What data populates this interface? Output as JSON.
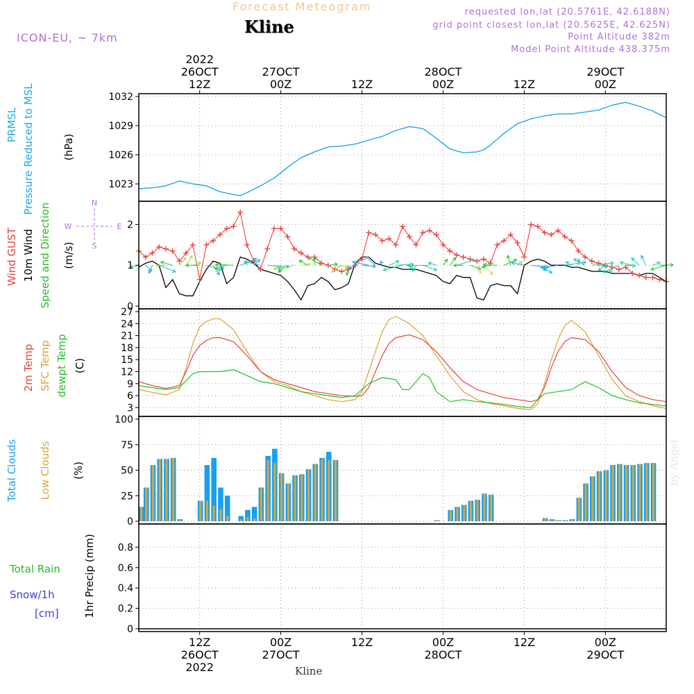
{
  "header": {
    "main_title": "Forecast Meteogram",
    "station": "Kline",
    "model": "ICON-EU, ~ 7km",
    "requested": "requested lon,lat (20.5761E, 42.6188N)",
    "grid_point": "grid point closest lon,lat (20.5625E, 42.625N)",
    "point_altitude": "Point Altitude 382m",
    "model_altitude": "Model Point Altitude 438.375m",
    "watermark": "by Angel",
    "bottom_station": "Kline"
  },
  "time_axis": {
    "hours_total": 78,
    "top_labels": [
      {
        "h": 0,
        "lines": [
          "2022",
          "26OCT",
          "12Z"
        ]
      },
      {
        "h": 12,
        "lines": [
          "27OCT",
          "00Z"
        ]
      },
      {
        "h": 24,
        "lines": [
          "12Z"
        ]
      },
      {
        "h": 36,
        "lines": [
          "28OCT",
          "00Z"
        ]
      },
      {
        "h": 48,
        "lines": [
          "12Z"
        ]
      },
      {
        "h": 60,
        "lines": [
          "29OCT",
          "00Z"
        ]
      }
    ],
    "bottom_labels": [
      {
        "h": 0,
        "lines": [
          "12Z",
          "26OCT",
          "2022"
        ]
      },
      {
        "h": 12,
        "lines": [
          "00Z",
          "27OCT"
        ]
      },
      {
        "h": 24,
        "lines": [
          "12Z"
        ]
      },
      {
        "h": 36,
        "lines": [
          "00Z",
          "28OCT"
        ]
      },
      {
        "h": 48,
        "lines": [
          "12Z"
        ]
      },
      {
        "h": 60,
        "lines": [
          "00Z",
          "29OCT"
        ]
      }
    ]
  },
  "panels": {
    "pressure": {
      "labels": [
        "PRMSL",
        "Pressure Reduced to MSL"
      ],
      "unit": "(hPa)",
      "ticks": [
        "1023",
        "1026",
        "1029",
        "1032"
      ]
    },
    "wind": {
      "labels": [
        "Wind GUST",
        "10m Wind",
        "Speed and Direction"
      ],
      "unit": "(m/s)",
      "ticks": [
        "0",
        "1",
        "2"
      ],
      "compass": {
        "n": "N",
        "w": "W",
        "e": "E",
        "s": "S"
      }
    },
    "temp": {
      "labels": [
        "2m Temp",
        "SFC Temp",
        "dewpt Temp"
      ],
      "unit": "(C)",
      "ticks": [
        "3",
        "6",
        "9",
        "12",
        "15",
        "18",
        "21",
        "24",
        "27"
      ]
    },
    "clouds": {
      "labels": [
        "Total Clouds",
        "Low Clouds"
      ],
      "unit": "(%)",
      "ticks": [
        "0",
        "25",
        "50",
        "75",
        "100"
      ]
    },
    "precip": {
      "labels": [
        "Total  Rain",
        "Snow/1h",
        "[cm]"
      ],
      "unit": "1hr Precip (mm)",
      "ticks": [
        "0",
        "0.2",
        "0.4",
        "0.6",
        "0.8"
      ]
    }
  },
  "colors": {
    "pressure": "#1ea8e8",
    "gust": "#e8403c",
    "wind": "#000000",
    "temp2m": "#e8403c",
    "sfc": "#e0a030",
    "dewpt": "#22c022",
    "total_clouds": "#1a9ff0",
    "low_clouds": "#d8a838",
    "purple": "#b26fdc",
    "title": "#f0c890"
  },
  "chart_data": [
    {
      "type": "line",
      "name": "PRMSL",
      "ylim": [
        1021.5,
        1032
      ],
      "x": [
        -9,
        -7,
        -5,
        -3,
        -1,
        1,
        3,
        5,
        6,
        7,
        9,
        11,
        13,
        15,
        17,
        19,
        21,
        23,
        24,
        25,
        27,
        29,
        31,
        33,
        35,
        37,
        38,
        39,
        41,
        42,
        43,
        45,
        47,
        49,
        51,
        53,
        55,
        57,
        59,
        61,
        63,
        65,
        67,
        69
      ],
      "values": [
        1022.5,
        1022.6,
        1022.8,
        1023.3,
        1023.0,
        1022.8,
        1022.2,
        1021.9,
        1021.8,
        1022.1,
        1022.8,
        1023.6,
        1024.7,
        1025.7,
        1026.3,
        1026.8,
        1026.9,
        1027.1,
        1027.3,
        1027.5,
        1027.9,
        1028.5,
        1028.9,
        1028.7,
        1027.7,
        1026.6,
        1026.4,
        1026.2,
        1026.3,
        1026.5,
        1027.0,
        1028.2,
        1029.2,
        1029.7,
        1030.0,
        1030.2,
        1030.2,
        1030.4,
        1030.6,
        1031.1,
        1031.4,
        1031.0,
        1030.5,
        1029.8
      ]
    },
    {
      "type": "line",
      "name": "Wind GUST",
      "ylim": [
        0,
        2.5
      ],
      "x": [
        -9,
        -8,
        -7,
        -6,
        -5,
        -4,
        -3,
        -2,
        -1,
        0,
        1,
        2,
        3,
        4,
        5,
        6,
        7,
        8,
        9,
        10,
        11,
        12,
        13,
        14,
        15,
        16,
        17,
        18,
        19,
        20,
        21,
        22,
        23,
        24,
        25,
        26,
        27,
        28,
        29,
        30,
        31,
        32,
        33,
        34,
        35,
        36,
        37,
        38,
        39,
        40,
        41,
        42,
        43,
        44,
        45,
        46,
        47,
        48,
        49,
        50,
        51,
        52,
        53,
        54,
        55,
        56,
        57,
        58,
        59,
        60,
        61,
        62,
        63,
        64,
        65,
        66,
        67,
        68,
        69
      ],
      "values": [
        1.35,
        1.2,
        1.3,
        1.45,
        1.4,
        1.35,
        1.1,
        1.3,
        1.5,
        0.65,
        1.5,
        1.6,
        1.75,
        1.9,
        1.95,
        2.3,
        1.5,
        1.1,
        0.9,
        1.4,
        1.9,
        1.9,
        1.7,
        1.4,
        1.3,
        1.2,
        1.2,
        1.05,
        1.0,
        0.9,
        0.85,
        0.9,
        1.0,
        1.15,
        1.8,
        1.75,
        1.6,
        1.65,
        1.5,
        1.95,
        1.7,
        1.5,
        1.8,
        1.85,
        1.75,
        1.5,
        1.35,
        1.25,
        1.2,
        1.15,
        1.1,
        1.15,
        1.05,
        1.5,
        1.6,
        1.75,
        1.55,
        1.2,
        2.0,
        1.95,
        1.8,
        1.75,
        1.85,
        1.7,
        1.6,
        1.35,
        1.2,
        1.1,
        1.05,
        1.0,
        0.95,
        0.9,
        0.95,
        0.8,
        0.75,
        0.7,
        0.7,
        0.65,
        0.6
      ]
    },
    {
      "type": "line",
      "name": "10m Wind",
      "ylim": [
        0,
        2.5
      ],
      "x": [
        -9,
        -8,
        -7,
        -6,
        -5,
        -4,
        -3,
        -2,
        -1,
        0,
        1,
        2,
        3,
        4,
        5,
        6,
        7,
        8,
        9,
        10,
        11,
        12,
        13,
        14,
        15,
        16,
        17,
        18,
        19,
        20,
        21,
        22,
        23,
        24,
        25,
        26,
        27,
        28,
        29,
        30,
        31,
        32,
        33,
        34,
        35,
        36,
        37,
        38,
        39,
        40,
        41,
        42,
        43,
        44,
        45,
        46,
        47,
        48,
        49,
        50,
        51,
        52,
        53,
        54,
        55,
        56,
        57,
        58,
        59,
        60,
        61,
        62,
        63,
        64,
        65,
        66,
        67,
        68,
        69
      ],
      "values": [
        0.95,
        1.05,
        1.1,
        1.0,
        0.45,
        0.65,
        0.3,
        0.25,
        0.25,
        0.6,
        0.9,
        1.1,
        1.05,
        0.55,
        0.7,
        1.2,
        1.15,
        1.05,
        0.9,
        0.85,
        0.8,
        0.75,
        0.6,
        0.4,
        0.15,
        0.5,
        0.55,
        0.7,
        0.6,
        0.4,
        0.45,
        0.55,
        1.05,
        1.2,
        1.2,
        1.05,
        1.0,
        0.95,
        0.95,
        0.9,
        0.9,
        0.9,
        0.85,
        0.8,
        0.75,
        0.6,
        0.55,
        0.75,
        0.7,
        0.7,
        0.2,
        0.15,
        0.5,
        0.55,
        0.5,
        0.5,
        0.3,
        1.0,
        1.1,
        1.15,
        1.1,
        1.0,
        1.0,
        1.0,
        0.95,
        0.95,
        0.9,
        0.85,
        0.85,
        0.85,
        0.8,
        0.8,
        0.8,
        0.8,
        0.75,
        0.8,
        0.8,
        0.7,
        0.6
      ]
    },
    {
      "type": "line",
      "name": "2m Temp",
      "ylim": [
        1.5,
        27
      ],
      "x": [
        -9,
        -7,
        -5,
        -3,
        -2,
        -1,
        0,
        1,
        2,
        3,
        5,
        7,
        9,
        11,
        13,
        15,
        17,
        19,
        21,
        23,
        24,
        25,
        26,
        27,
        28,
        29,
        31,
        33,
        35,
        37,
        39,
        41,
        43,
        45,
        47,
        49,
        50,
        51,
        52,
        53,
        54,
        55,
        57,
        59,
        61,
        63,
        65,
        67,
        69
      ],
      "values": [
        9.5,
        8.5,
        7.8,
        8.5,
        12,
        16,
        18.5,
        19.8,
        20.5,
        20.5,
        19.5,
        16,
        12,
        10,
        9,
        8,
        7,
        6.5,
        6,
        5.8,
        6,
        8,
        12,
        16,
        19,
        20.5,
        21.2,
        20,
        17,
        13,
        9.5,
        7.5,
        6.5,
        5.5,
        5,
        4.5,
        5,
        8,
        13,
        17,
        19.5,
        20.5,
        20,
        17,
        12,
        8,
        6,
        5,
        4.5
      ]
    },
    {
      "type": "line",
      "name": "SFC Temp",
      "ylim": [
        1.5,
        27
      ],
      "x": [
        -9,
        -7,
        -5,
        -3,
        -2,
        -1,
        0,
        1,
        2,
        3,
        5,
        7,
        9,
        11,
        13,
        15,
        17,
        19,
        21,
        23,
        24,
        25,
        26,
        27,
        28,
        29,
        31,
        33,
        35,
        37,
        39,
        41,
        43,
        45,
        47,
        49,
        50,
        51,
        52,
        53,
        54,
        55,
        57,
        59,
        61,
        63,
        65,
        67,
        69
      ],
      "values": [
        7.5,
        6.8,
        6.2,
        7.5,
        13,
        19,
        23.2,
        24.5,
        25.2,
        25.2,
        22.5,
        17,
        12,
        9.5,
        8.5,
        7,
        6,
        5,
        4.5,
        5,
        7,
        12,
        17,
        22,
        25,
        25.8,
        24,
        21,
        16,
        11,
        7,
        5,
        4,
        3.5,
        2.8,
        2.5,
        4,
        9,
        15,
        20,
        23.5,
        24.8,
        22,
        16,
        10,
        6,
        4.5,
        3.5,
        2.8
      ]
    },
    {
      "type": "line",
      "name": "dewpt Temp",
      "ylim": [
        1.5,
        27
      ],
      "x": [
        -9,
        -7,
        -5,
        -3,
        -1,
        0,
        1,
        3,
        5,
        7,
        9,
        11,
        13,
        15,
        17,
        19,
        21,
        23,
        24,
        25,
        27,
        29,
        30,
        31,
        33,
        34,
        35,
        37,
        39,
        41,
        43,
        45,
        47,
        49,
        50,
        51,
        53,
        55,
        57,
        59,
        61,
        63,
        65,
        67,
        69
      ],
      "values": [
        8.5,
        8.0,
        7.5,
        8.0,
        11.5,
        12.0,
        12.0,
        12.0,
        12.5,
        11.0,
        9.5,
        9.0,
        8.0,
        7.0,
        6.5,
        6.0,
        5.5,
        6.0,
        7.5,
        9.0,
        10.5,
        10.0,
        7.5,
        7.5,
        11.5,
        10.5,
        7.0,
        4.5,
        5.0,
        4.5,
        4.2,
        3.8,
        3.3,
        3.0,
        5.0,
        6.5,
        7.0,
        7.5,
        9.5,
        8.0,
        6.0,
        5.0,
        4.2,
        3.8,
        3.4
      ]
    },
    {
      "type": "bar",
      "name": "Total Clouds",
      "ylim": [
        0,
        100
      ],
      "x": [
        -9,
        -8,
        -7,
        -6,
        -5,
        -4,
        -3,
        -2,
        -1,
        0,
        1,
        2,
        3,
        4,
        5,
        6,
        7,
        8,
        9,
        10,
        11,
        12,
        13,
        14,
        15,
        16,
        17,
        18,
        19,
        20,
        21,
        22,
        23,
        24,
        25,
        26,
        27,
        28,
        29,
        30,
        31,
        32,
        33,
        34,
        35,
        36,
        37,
        38,
        39,
        40,
        41,
        42,
        43,
        44,
        45,
        46,
        47,
        48,
        49,
        50,
        51,
        52,
        53,
        54,
        55,
        56,
        57,
        58,
        59,
        60,
        61,
        62,
        63,
        64,
        65,
        66,
        67,
        68,
        69
      ],
      "values": [
        14,
        33,
        55,
        61,
        61,
        62,
        2,
        0,
        0,
        20,
        55,
        62,
        33,
        25,
        0,
        5,
        11,
        14,
        33,
        64,
        71,
        47,
        37,
        45,
        46,
        51,
        56,
        62,
        68,
        60,
        0,
        0,
        0,
        0,
        0,
        0,
        0,
        0,
        0,
        0,
        0,
        0,
        0,
        0,
        1,
        0,
        11,
        14,
        16,
        20,
        21,
        27,
        26,
        0,
        0,
        0,
        0,
        0,
        0,
        0,
        3,
        2,
        1,
        1,
        2,
        23,
        37,
        44,
        49,
        50,
        55,
        56,
        55,
        55,
        56,
        57,
        57,
        0,
        0
      ]
    },
    {
      "type": "bar",
      "name": "Low Clouds",
      "ylim": [
        0,
        100
      ],
      "x": [
        -9,
        -8,
        -7,
        -6,
        -5,
        -4,
        -3,
        -2,
        -1,
        0,
        1,
        2,
        3,
        4,
        5,
        6,
        7,
        8,
        9,
        10,
        11,
        12,
        13,
        14,
        15,
        16,
        17,
        18,
        19,
        20,
        21,
        22,
        23,
        24,
        25,
        26,
        27,
        28,
        29,
        30,
        31,
        32,
        33,
        34,
        35,
        36,
        37,
        38,
        39,
        40,
        41,
        42,
        43,
        44,
        45,
        46,
        47,
        48,
        49,
        50,
        51,
        52,
        53,
        54,
        55,
        56,
        57,
        58,
        59,
        60,
        61,
        62,
        63,
        64,
        65,
        66,
        67,
        68,
        69
      ],
      "values": [
        14,
        33,
        55,
        61,
        61,
        62,
        2,
        0,
        0,
        20,
        20,
        15,
        12,
        5,
        0,
        2,
        4,
        3,
        33,
        60,
        57,
        47,
        37,
        45,
        46,
        51,
        56,
        61,
        60,
        60,
        0,
        0,
        0,
        0,
        0,
        0,
        0,
        0,
        0,
        0,
        0,
        0,
        0,
        0,
        1,
        0,
        11,
        14,
        16,
        20,
        21,
        27,
        26,
        0,
        0,
        0,
        0,
        0,
        0,
        0,
        3,
        2,
        1,
        1,
        2,
        23,
        37,
        44,
        49,
        50,
        55,
        56,
        55,
        55,
        56,
        57,
        57,
        0,
        0
      ]
    },
    {
      "type": "line",
      "name": "1hr Precip",
      "ylim": [
        0,
        1.0
      ],
      "x": [
        -9,
        69
      ],
      "values": [
        0,
        0
      ]
    }
  ]
}
